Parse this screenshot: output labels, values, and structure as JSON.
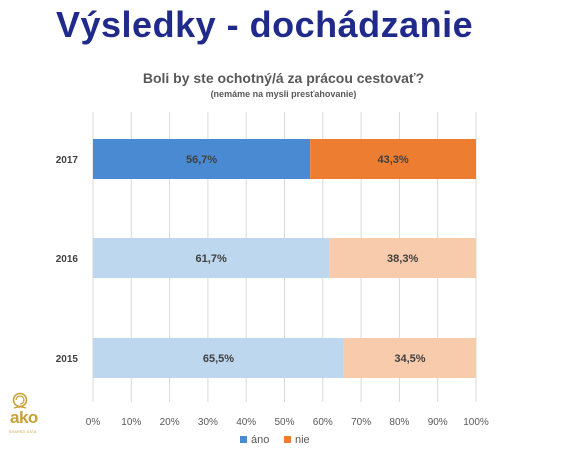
{
  "slide": {
    "title": "Výsledky - dochádzanie"
  },
  "logo": {
    "text": "ako",
    "tagline": "SHARED DATA"
  },
  "chart_data": {
    "type": "bar",
    "orientation": "horizontal",
    "stacked": true,
    "title": "Boli by ste ochotný/á za prácou cestovať?",
    "subtitle": "(nemáme na mysli presťahovanie)",
    "categories": [
      "2017",
      "2016",
      "2015"
    ],
    "series": [
      {
        "name": "áno",
        "values": [
          56.7,
          61.7,
          65.5
        ],
        "labels": [
          "56,7%",
          "61,7%",
          "65,5%"
        ]
      },
      {
        "name": "nie",
        "values": [
          43.3,
          38.3,
          34.5
        ],
        "labels": [
          "43,3%",
          "38,3%",
          "34,5%"
        ]
      }
    ],
    "xlim": [
      0,
      100
    ],
    "x_ticks": [
      "0%",
      "10%",
      "20%",
      "30%",
      "40%",
      "50%",
      "60%",
      "70%",
      "80%",
      "90%",
      "100%"
    ],
    "grid": true,
    "legend": "bottom",
    "colors": {
      "ano_highlight": "#4a8ad3",
      "nie_highlight": "#ed7d31",
      "ano_muted": "#bdd7ee",
      "nie_muted": "#f8cbad"
    }
  }
}
